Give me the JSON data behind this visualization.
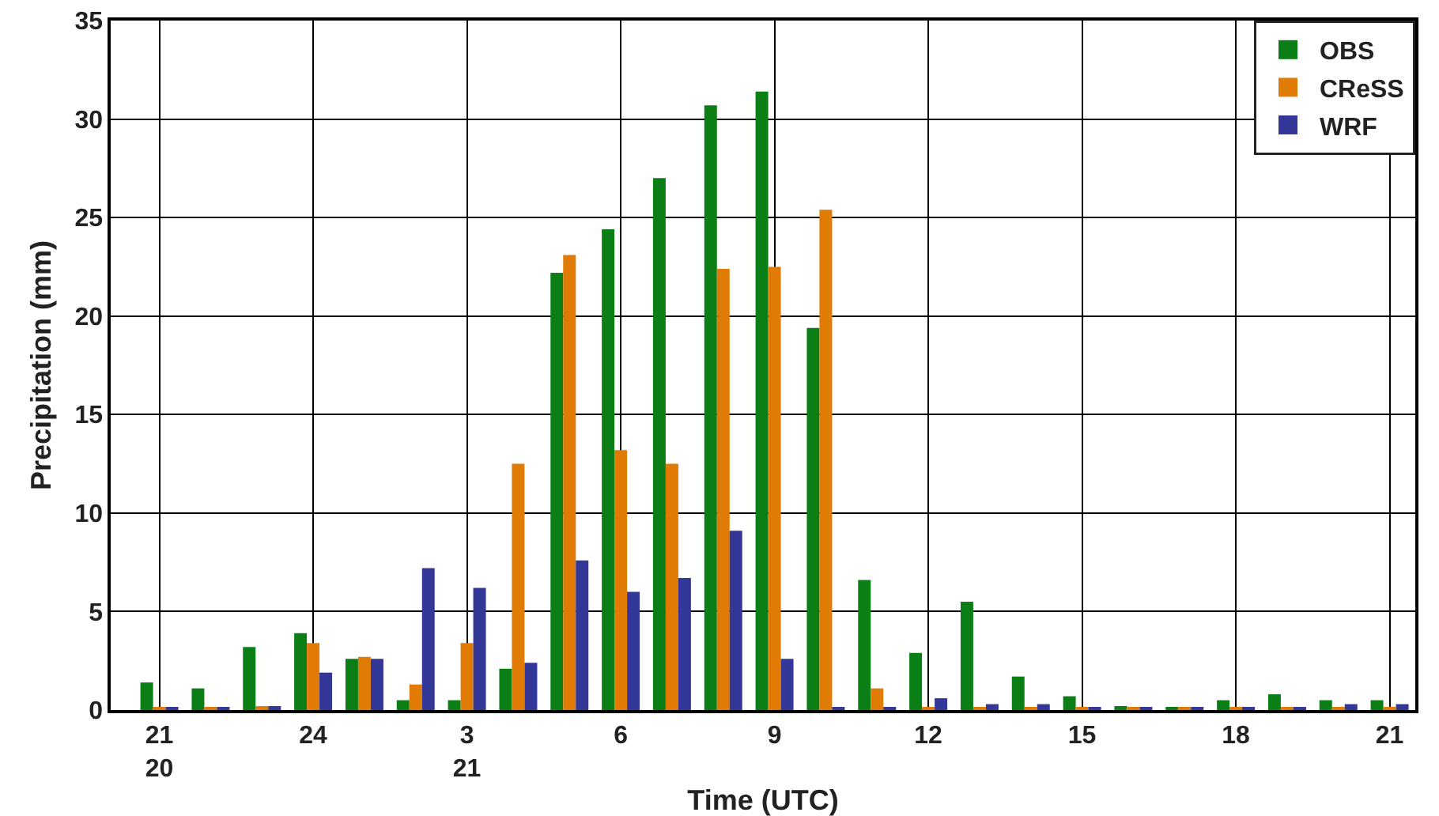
{
  "chart_data": {
    "type": "bar",
    "xlabel": "Time (UTC)",
    "ylabel": "Precipitation (mm)",
    "categories": [
      "21\n20",
      null,
      null,
      "24",
      null,
      null,
      "3\n21",
      null,
      null,
      "6",
      null,
      null,
      "9",
      null,
      null,
      "12",
      null,
      null,
      "15",
      null,
      null,
      "18",
      null,
      null,
      "21"
    ],
    "series": [
      {
        "name": "OBS",
        "color": "#0b7f16",
        "values": [
          1.4,
          1.1,
          3.2,
          3.9,
          2.6,
          0.5,
          0.5,
          2.1,
          22.2,
          24.4,
          27.0,
          30.7,
          31.4,
          19.4,
          6.6,
          2.9,
          5.5,
          1.7,
          0.7,
          0.2,
          0.1,
          0.5,
          0.8,
          0.5,
          0.5
        ]
      },
      {
        "name": "CReSS",
        "color": "#e07c05",
        "values": [
          0.1,
          0.1,
          0.2,
          3.4,
          2.7,
          1.3,
          3.4,
          12.5,
          23.1,
          13.2,
          12.5,
          22.4,
          22.5,
          25.4,
          1.1,
          0.1,
          0.1,
          0.1,
          0.1,
          0.1,
          0.1,
          0.1,
          0.1,
          0.1,
          0.1
        ]
      },
      {
        "name": "WRF",
        "color": "#333797",
        "values": [
          0.1,
          0.1,
          0.2,
          1.9,
          2.6,
          7.2,
          6.2,
          2.4,
          7.6,
          6.0,
          6.7,
          9.1,
          2.6,
          0.1,
          0.1,
          0.6,
          0.3,
          0.3,
          0.1,
          0.1,
          0.1,
          0.1,
          0.1,
          0.3,
          0.3
        ]
      }
    ],
    "ylim": [
      0,
      35
    ],
    "yticks": [
      0,
      5,
      10,
      15,
      20,
      25,
      30,
      35
    ],
    "grid": true,
    "legend": "top right"
  }
}
